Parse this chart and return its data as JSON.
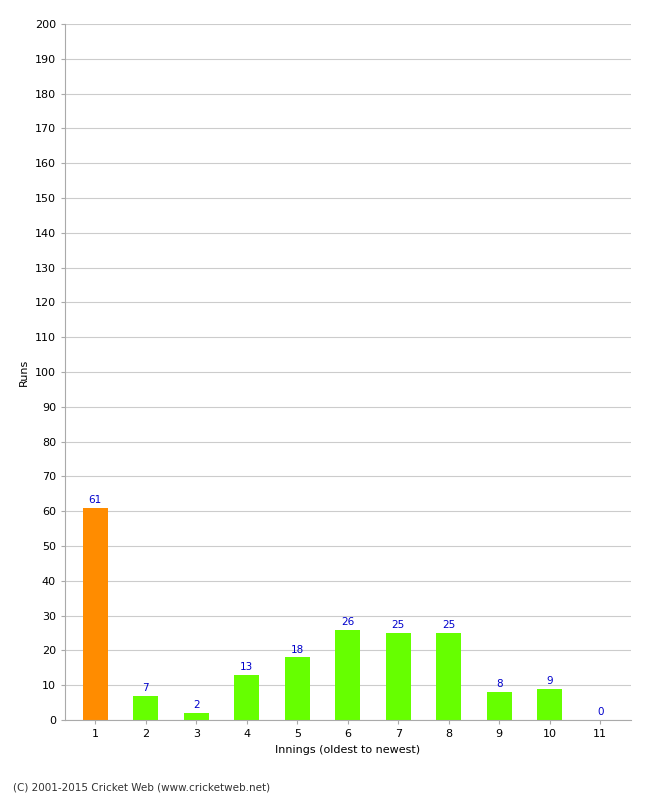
{
  "categories": [
    "1",
    "2",
    "3",
    "4",
    "5",
    "6",
    "7",
    "8",
    "9",
    "10",
    "11"
  ],
  "values": [
    61,
    7,
    2,
    13,
    18,
    26,
    25,
    25,
    8,
    9,
    0
  ],
  "bar_colors": [
    "#ff8c00",
    "#66ff00",
    "#66ff00",
    "#66ff00",
    "#66ff00",
    "#66ff00",
    "#66ff00",
    "#66ff00",
    "#66ff00",
    "#66ff00",
    "#66ff00"
  ],
  "xlabel": "Innings (oldest to newest)",
  "ylabel": "Runs",
  "ylim": [
    0,
    200
  ],
  "yticks": [
    0,
    10,
    20,
    30,
    40,
    50,
    60,
    70,
    80,
    90,
    100,
    110,
    120,
    130,
    140,
    150,
    160,
    170,
    180,
    190,
    200
  ],
  "label_color": "#0000cc",
  "label_fontsize": 7.5,
  "ylabel_fontsize": 8,
  "xlabel_fontsize": 8,
  "tick_fontsize": 8,
  "footer": "(C) 2001-2015 Cricket Web (www.cricketweb.net)",
  "background_color": "#ffffff",
  "grid_color": "#cccccc",
  "bar_width": 0.5
}
